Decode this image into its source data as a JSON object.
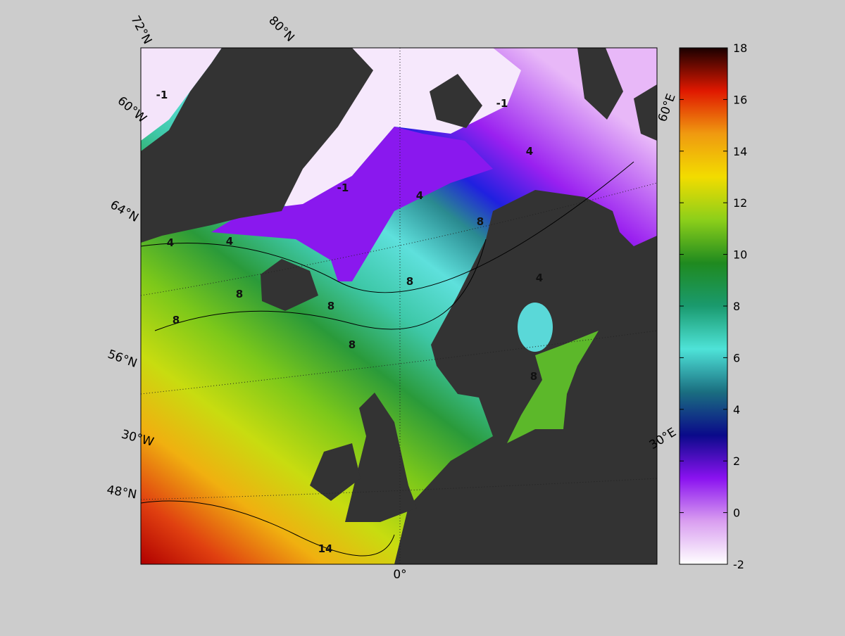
{
  "map": {
    "colorbar": {
      "lim": [
        -2,
        18
      ],
      "ticks": [
        -2,
        0,
        2,
        4,
        6,
        8,
        10,
        12,
        14,
        16,
        18
      ],
      "colors": [
        "#ffffff",
        "#d99ef0",
        "#8a12f0",
        "#0a0a8a",
        "#1a6e80",
        "#4ee3d8",
        "#1a9a6e",
        "#1f8a1f",
        "#8ccf1a",
        "#f2dc00",
        "#f09a10",
        "#e01800",
        "#1a0000"
      ]
    },
    "graticule_labels": [
      "72°N",
      "80°N",
      "60°W",
      "64°N",
      "56°N",
      "30°W",
      "48°N",
      "0°",
      "30°E",
      "60°E"
    ],
    "contour_labels": [
      "-1",
      "-1",
      "-1",
      "4",
      "4",
      "4",
      "4",
      "8",
      "8",
      "8",
      "8",
      "8",
      "8",
      "4",
      "8",
      "14"
    ]
  }
}
